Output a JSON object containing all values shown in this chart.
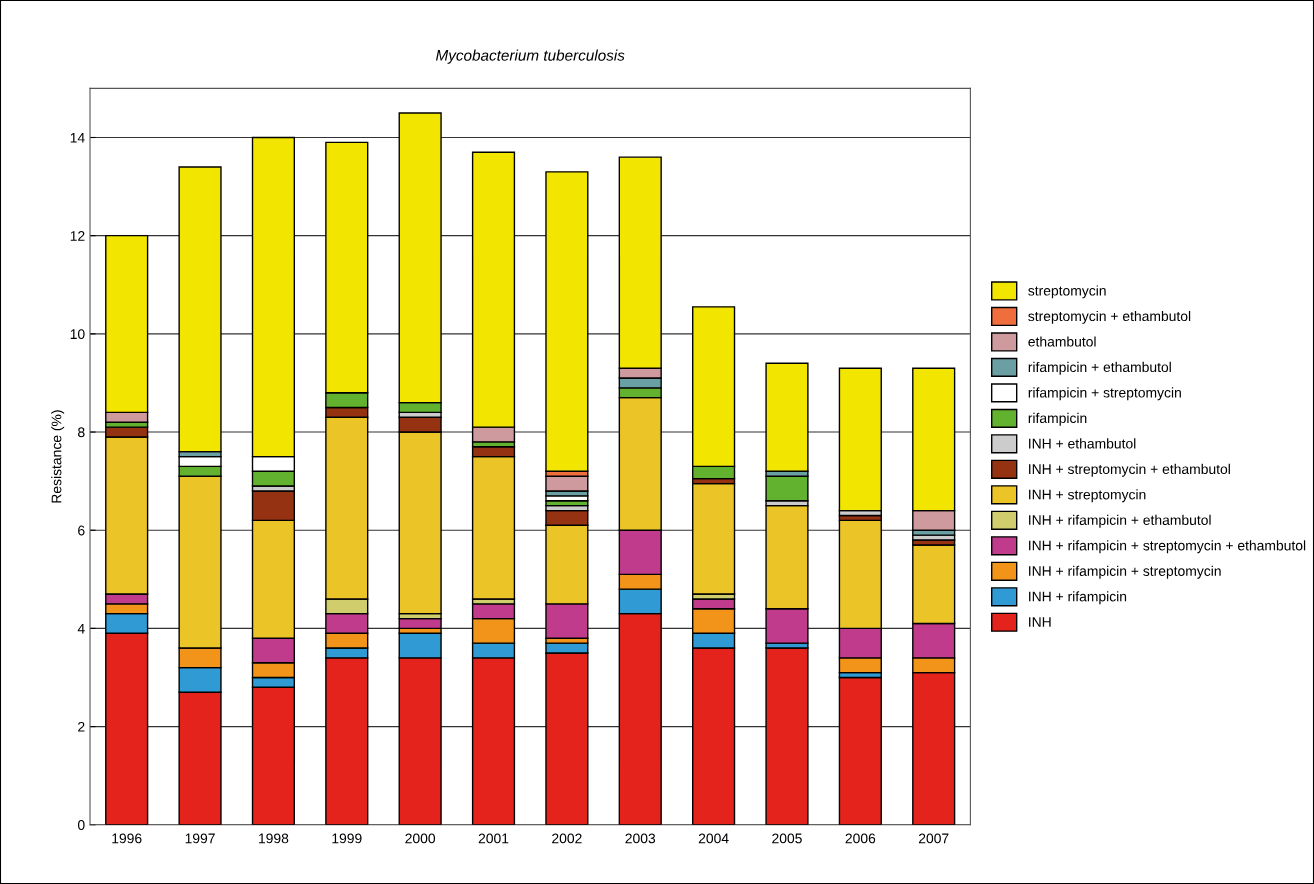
{
  "chart_data": {
    "type": "bar",
    "stacked": true,
    "title": "Mycobacterium tuberculosis",
    "ylabel": "Resistance (%)",
    "categories": [
      "1996",
      "1997",
      "1998",
      "1999",
      "2000",
      "2001",
      "2002",
      "2003",
      "2004",
      "2005",
      "2006",
      "2007"
    ],
    "ylim": [
      0,
      15
    ],
    "yticks": [
      0,
      2,
      4,
      6,
      8,
      10,
      12,
      14
    ],
    "grid": "y",
    "legend": "right",
    "series": [
      {
        "name": "INH",
        "color": "#e3231c",
        "values": [
          3.9,
          2.7,
          2.8,
          3.4,
          3.4,
          3.4,
          3.5,
          4.3,
          3.6,
          3.6,
          3.0,
          3.1
        ]
      },
      {
        "name": "INH + rifampicin",
        "color": "#2f9ad3",
        "values": [
          0.4,
          0.5,
          0.2,
          0.2,
          0.5,
          0.3,
          0.2,
          0.5,
          0.3,
          0.1,
          0.1,
          null
        ]
      },
      {
        "name": "INH + rifampicin + streptomycin",
        "color": "#f29419",
        "values": [
          0.2,
          0.4,
          0.3,
          0.3,
          0.1,
          0.5,
          0.1,
          0.3,
          0.5,
          null,
          0.3,
          0.3
        ]
      },
      {
        "name": "INH + rifampicin + streptomycin + ethambutol",
        "color": "#c03b8b",
        "values": [
          0.2,
          null,
          0.5,
          0.4,
          0.2,
          0.3,
          0.7,
          0.9,
          0.2,
          0.7,
          0.6,
          0.7
        ]
      },
      {
        "name": "INH + rifampicin + ethambutol",
        "color": "#cfcd6c",
        "values": [
          null,
          null,
          null,
          0.3,
          0.1,
          0.1,
          null,
          null,
          0.1,
          null,
          null,
          null
        ]
      },
      {
        "name": "INH + streptomycin",
        "color": "#ebc428",
        "values": [
          3.2,
          3.5,
          2.4,
          3.7,
          3.7,
          2.9,
          1.6,
          2.7,
          2.25,
          2.1,
          2.2,
          1.6
        ]
      },
      {
        "name": "INH + streptomycin + ethambutol",
        "color": "#943212",
        "values": [
          0.2,
          null,
          0.6,
          0.2,
          0.3,
          0.2,
          0.3,
          null,
          0.1,
          null,
          0.1,
          0.1
        ]
      },
      {
        "name": "INH + ethambutol",
        "color": "#cccccc",
        "values": [
          null,
          null,
          0.1,
          null,
          0.1,
          null,
          0.1,
          null,
          null,
          0.1,
          0.1,
          0.1
        ]
      },
      {
        "name": "rifampicin",
        "color": "#62b22f",
        "values": [
          0.1,
          0.2,
          0.3,
          0.3,
          0.2,
          0.1,
          0.1,
          0.2,
          0.25,
          0.5,
          null,
          null
        ]
      },
      {
        "name": "rifampicin + streptomycin",
        "color": "#ffffff",
        "values": [
          null,
          0.2,
          0.3,
          null,
          null,
          null,
          0.1,
          null,
          null,
          null,
          null,
          null
        ]
      },
      {
        "name": "rifampicin + ethambutol",
        "color": "#6a9fa3",
        "values": [
          null,
          0.1,
          null,
          null,
          null,
          null,
          0.1,
          0.2,
          null,
          0.1,
          null,
          0.1
        ]
      },
      {
        "name": "ethambutol",
        "color": "#cf9a9e",
        "values": [
          0.2,
          null,
          null,
          null,
          null,
          0.3,
          0.3,
          0.2,
          null,
          null,
          null,
          0.4
        ]
      },
      {
        "name": "streptomycin + ethambutol",
        "color": "#f06e3c",
        "values": [
          null,
          null,
          null,
          null,
          null,
          null,
          0.1,
          null,
          null,
          null,
          null,
          null
        ]
      },
      {
        "name": "streptomycin",
        "color": "#f2e500",
        "values": [
          3.6,
          5.8,
          6.5,
          5.1,
          5.9,
          5.6,
          6.1,
          4.3,
          3.25,
          2.2,
          2.9,
          2.9
        ]
      }
    ]
  }
}
